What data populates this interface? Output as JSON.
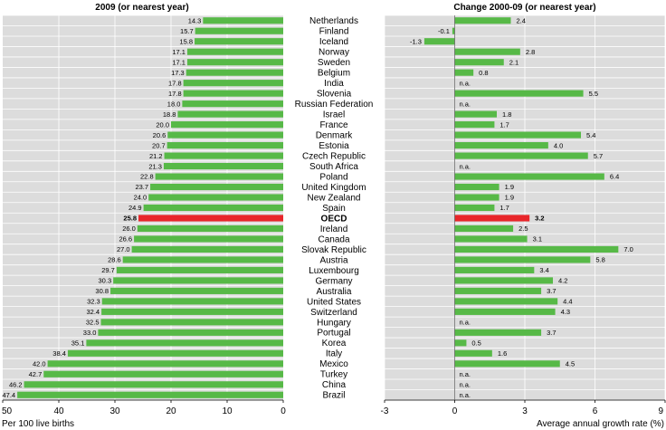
{
  "chart_data": [
    {
      "type": "bar",
      "title": "2009 (or nearest year)",
      "xlabel": "Per 100 live births",
      "xlim": [
        50,
        0
      ],
      "xticks": [
        "50",
        "40",
        "30",
        "20",
        "10",
        "0"
      ],
      "grid": true,
      "highlight": "OECD",
      "colors": {
        "bar": "#57b947",
        "highlight": "#e8262a",
        "plot_bg": "#dcdcdc"
      },
      "categories": [
        "Netherlands",
        "Finland",
        "Iceland",
        "Norway",
        "Sweden",
        "Belgium",
        "India",
        "Slovenia",
        "Russian Federation",
        "Israel",
        "France",
        "Denmark",
        "Estonia",
        "Czech Republic",
        "South Africa",
        "Poland",
        "United Kingdom",
        "New Zealand",
        "Spain",
        "OECD",
        "Ireland",
        "Canada",
        "Slovak Republic",
        "Austria",
        "Luxembourg",
        "Germany",
        "Australia",
        "United States",
        "Switzerland",
        "Hungary",
        "Portugal",
        "Korea",
        "Italy",
        "Mexico",
        "Turkey",
        "China",
        "Brazil"
      ],
      "values": [
        14.3,
        15.7,
        15.8,
        17.1,
        17.1,
        17.3,
        17.8,
        17.8,
        18.0,
        18.8,
        20.0,
        20.6,
        20.7,
        21.2,
        21.3,
        22.8,
        23.7,
        24.0,
        24.9,
        25.8,
        26.0,
        26.6,
        27.0,
        28.6,
        29.7,
        30.3,
        30.8,
        32.3,
        32.4,
        32.5,
        33.0,
        35.1,
        38.4,
        42.0,
        42.7,
        46.2,
        47.4
      ],
      "labels": [
        "14.3",
        "15.7",
        "15.8",
        "17.1",
        "17.1",
        "17.3",
        "17.8",
        "17.8",
        "18.0",
        "18.8",
        "20.0",
        "20.6",
        "20.7",
        "21.2",
        "21.3",
        "22.8",
        "23.7",
        "24.0",
        "24.9",
        "25.8",
        "26.0",
        "26.6",
        "27.0",
        "28.6",
        "29.7",
        "30.3",
        "30.8",
        "32.3",
        "32.4",
        "32.5",
        "33.0",
        "35.1",
        "38.4",
        "42.0",
        "42.7",
        "46.2",
        "47.4"
      ]
    },
    {
      "type": "bar",
      "title": "Change 2000-09 (or nearest year)",
      "xlabel": "Average annual growth rate (%)",
      "xlim": [
        -3,
        9
      ],
      "xticks": [
        "-3",
        "0",
        "3",
        "6",
        "9"
      ],
      "grid": true,
      "highlight": "OECD",
      "na_label": "n.a.",
      "colors": {
        "bar": "#57b947",
        "highlight": "#e8262a",
        "plot_bg": "#dcdcdc"
      },
      "categories": [
        "Netherlands",
        "Finland",
        "Iceland",
        "Norway",
        "Sweden",
        "Belgium",
        "India",
        "Slovenia",
        "Russian Federation",
        "Israel",
        "France",
        "Denmark",
        "Estonia",
        "Czech Republic",
        "South Africa",
        "Poland",
        "United Kingdom",
        "New Zealand",
        "Spain",
        "OECD",
        "Ireland",
        "Canada",
        "Slovak Republic",
        "Austria",
        "Luxembourg",
        "Germany",
        "Australia",
        "United States",
        "Switzerland",
        "Hungary",
        "Portugal",
        "Korea",
        "Italy",
        "Mexico",
        "Turkey",
        "China",
        "Brazil"
      ],
      "values": [
        2.4,
        -0.1,
        -1.3,
        2.8,
        2.1,
        0.8,
        null,
        5.5,
        null,
        1.8,
        1.7,
        5.4,
        4.0,
        5.7,
        null,
        6.4,
        1.9,
        1.9,
        1.7,
        3.2,
        2.5,
        3.1,
        7.0,
        5.8,
        3.4,
        4.2,
        3.7,
        4.4,
        4.3,
        null,
        3.7,
        0.5,
        1.6,
        4.5,
        null,
        null,
        null
      ],
      "labels": [
        "2.4",
        "-0.1",
        "-1.3",
        "2.8",
        "2.1",
        "0.8",
        "n.a.",
        "5.5",
        "n.a.",
        "1.8",
        "1.7",
        "5.4",
        "4.0",
        "5.7",
        "n.a.",
        "6.4",
        "1.9",
        "1.9",
        "1.7",
        "3.2",
        "2.5",
        "3.1",
        "7.0",
        "5.8",
        "3.4",
        "4.2",
        "3.7",
        "4.4",
        "4.3",
        "n.a.",
        "3.7",
        "0.5",
        "1.6",
        "4.5",
        "n.a.",
        "n.a.",
        "n.a."
      ]
    }
  ]
}
